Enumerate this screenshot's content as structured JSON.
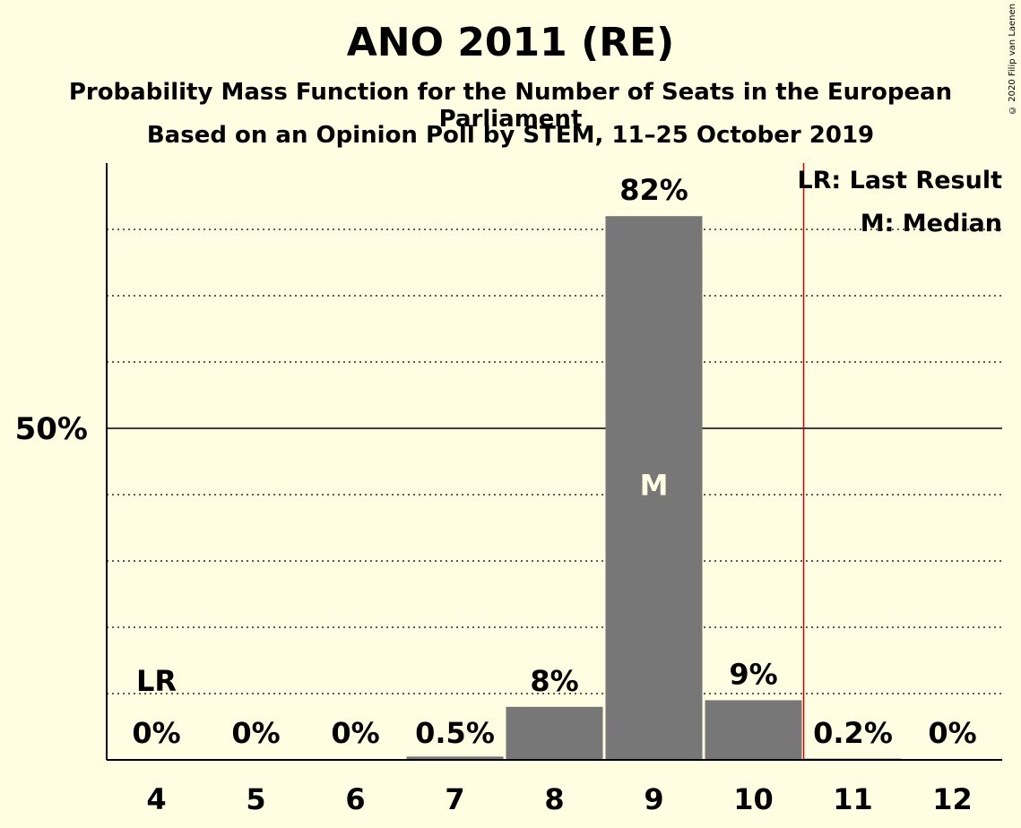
{
  "chart_data": {
    "type": "bar",
    "title": "ANO 2011 (RE)",
    "subtitle": "Probability Mass Function for the Number of Seats in the European Parliament",
    "subtitle2": "Based on an Opinion Poll by STEM, 11–25 October 2019",
    "copyright": "© 2020 Filip van Laenen",
    "categories": [
      "4",
      "5",
      "6",
      "7",
      "8",
      "9",
      "10",
      "11",
      "12"
    ],
    "values": [
      0,
      0,
      0,
      0.5,
      8,
      82,
      9,
      0.2,
      0
    ],
    "value_labels": [
      "0%",
      "0%",
      "0%",
      "0.5%",
      "8%",
      "82%",
      "9%",
      "0.2%",
      "0%"
    ],
    "ylim": [
      0,
      90
    ],
    "y_tick_label": "50%",
    "y_tick_value": 50,
    "gridline_step": 10,
    "median_category": "9",
    "median_marker": "M",
    "last_result_category": "4",
    "last_result_marker": "LR",
    "majority_line_after_category": "10",
    "legend": [
      "LR: Last Result",
      "M: Median"
    ],
    "legend_position": "top-right",
    "colors": {
      "background": "#fffde2",
      "bar": "#777777",
      "majority_line": "#cc0000",
      "median_text": "#fffde2"
    }
  }
}
